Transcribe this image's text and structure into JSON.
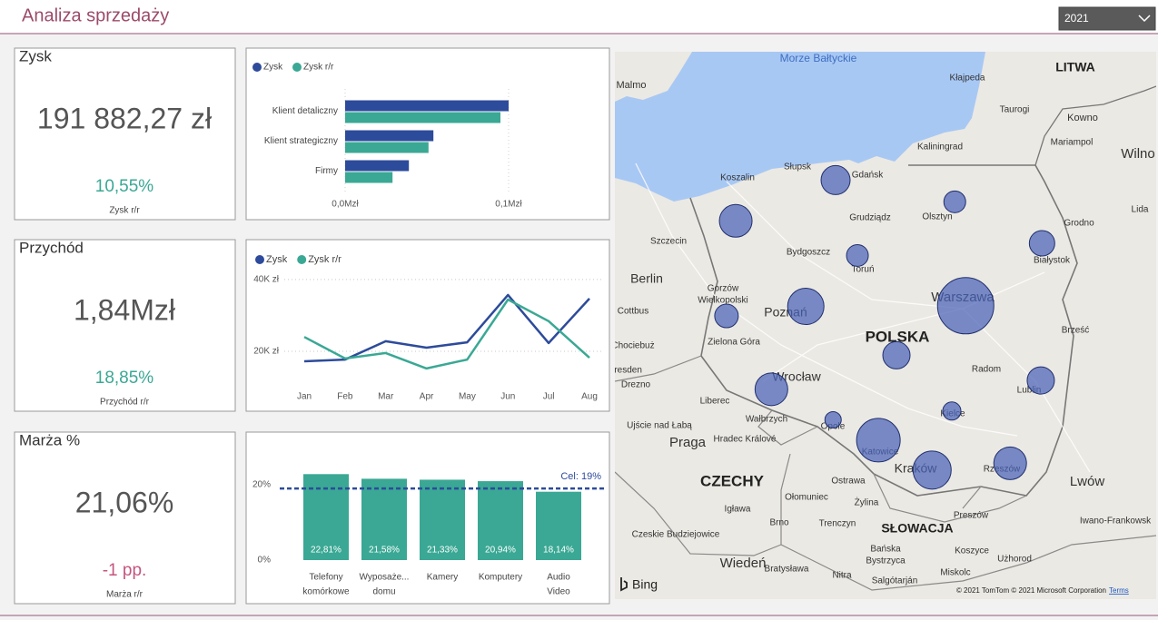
{
  "header": {
    "title": "Analiza sprzedaży",
    "filter": "2021"
  },
  "cards": [
    {
      "title": "Zysk",
      "value": "191 882,27 zł",
      "change": "10,55%",
      "change_label": "Zysk r/r",
      "change_color": "#3aa894"
    },
    {
      "title": "Przychód",
      "value": "1,84Mzł",
      "change": "18,85%",
      "change_label": "Przychód r/r",
      "change_color": "#3aa894"
    },
    {
      "title": "Marża %",
      "value": "21,06%",
      "change": "-1 pp.",
      "change_label": "Marża r/r",
      "change_color": "#c4557e"
    }
  ],
  "charts": [
    {
      "type": "hbar",
      "categories": [
        "Klient detaliczny",
        "Klient strategiczny",
        "Firmy"
      ],
      "series": [
        {
          "name": "Zysk",
          "color": "#2d4b9b",
          "values": [
            0.1,
            0.054,
            0.039
          ]
        },
        {
          "name": "Zysk r/r",
          "color": "#3aa894",
          "values": [
            0.095,
            0.051,
            0.029
          ]
        }
      ],
      "xlim": [
        0,
        0.1
      ],
      "xticks": [
        {
          "value": 0,
          "label": "0,0Mzł"
        },
        {
          "value": 0.1,
          "label": "0,1Mzł"
        }
      ],
      "grid": true
    },
    {
      "type": "line",
      "categories": [
        "Jan",
        "Feb",
        "Mar",
        "Apr",
        "May",
        "Jun",
        "Jul",
        "Aug"
      ],
      "series": [
        {
          "name": "Zysk",
          "color": "#2d4b9b",
          "values": [
            17200,
            17700,
            22800,
            21000,
            22500,
            35700,
            22300,
            34700
          ]
        },
        {
          "name": "Zysk r/r",
          "color": "#3aa894",
          "values": [
            24000,
            18000,
            19500,
            15200,
            17700,
            34400,
            28400,
            18200
          ]
        }
      ],
      "ylim": [
        10000,
        42000
      ],
      "yticks": [
        {
          "value": 20000,
          "label": "20K zł"
        },
        {
          "value": 40000,
          "label": "40K zł"
        }
      ],
      "grid": true
    },
    {
      "type": "bar",
      "categories": [
        [
          "Telefony",
          "komórkowe"
        ],
        [
          "Wyposaże...",
          "domu"
        ],
        [
          "Kamery"
        ],
        [
          "Komputery"
        ],
        [
          "Audio",
          "Video"
        ]
      ],
      "values": [
        22.81,
        21.58,
        21.33,
        20.94,
        18.14
      ],
      "value_labels": [
        "22,81%",
        "21,58%",
        "21,33%",
        "20,94%",
        "18,14%"
      ],
      "color": "#3aa894",
      "ylim": [
        0,
        33
      ],
      "yticks": [
        {
          "value": 0,
          "label": "0%"
        },
        {
          "value": 20,
          "label": "20%"
        }
      ],
      "target": {
        "value": 19,
        "label": "Cel: 19%",
        "color": "#2d4b9b"
      }
    }
  ],
  "map": {
    "lonlim": [
      12.64,
      25.54
    ],
    "latlim": [
      48.13,
      56.19
    ],
    "bubble_color": "#4a63b8",
    "bubbles": [
      {
        "lon": 17.9,
        "lat": 54.3,
        "value": 256
      },
      {
        "lon": 20.74,
        "lat": 53.98,
        "value": 144
      },
      {
        "lon": 15.52,
        "lat": 53.7,
        "value": 324
      },
      {
        "lon": 22.82,
        "lat": 53.37,
        "value": 196
      },
      {
        "lon": 18.42,
        "lat": 53.19,
        "value": 144
      },
      {
        "lon": 17.19,
        "lat": 52.44,
        "value": 400
      },
      {
        "lon": 21.0,
        "lat": 52.45,
        "value": 961
      },
      {
        "lon": 15.3,
        "lat": 52.3,
        "value": 169
      },
      {
        "lon": 19.35,
        "lat": 51.72,
        "value": 225
      },
      {
        "lon": 22.79,
        "lat": 51.35,
        "value": 225
      },
      {
        "lon": 16.37,
        "lat": 51.22,
        "value": 324
      },
      {
        "lon": 20.67,
        "lat": 50.9,
        "value": 100
      },
      {
        "lon": 17.84,
        "lat": 50.77,
        "value": 81
      },
      {
        "lon": 18.92,
        "lat": 50.47,
        "value": 576
      },
      {
        "lon": 20.2,
        "lat": 50.03,
        "value": 441
      },
      {
        "lon": 22.06,
        "lat": 50.13,
        "value": 324
      }
    ],
    "labels": [
      "Morze Bałtyckie",
      "LITWA",
      "POLSKA",
      "CZECHY",
      "SŁOWACJA",
      "Malmo",
      "Kłajpeda",
      "Taurogi",
      "Kowno",
      "Kaliningrad",
      "Mariampol",
      "Wilno",
      "Koszalin",
      "Słupsk",
      "Gdańsk",
      "Olsztyn",
      "Grudziądz",
      "Lida",
      "Grodno",
      "Szczecin",
      "Bydgoszcz",
      "Toruń",
      "Białystok",
      "Berlin",
      "Gorzów",
      "Wielkopolski",
      "Poznań",
      "Warszawa",
      "Cottbus",
      "Brześć",
      "Chociebuż",
      "Zielona Góra",
      "Radom",
      "Wrocław",
      "Dresden",
      "Drezno",
      "Lublin",
      "Liberec",
      "Wałbrzych",
      "Kielce",
      "Opole",
      "Ujście nad Łabą",
      "Hradec Králové",
      "Katowice",
      "Praga",
      "Kraków",
      "Rzeszów",
      "Lwów",
      "Ostrawa",
      "Igława",
      "Ołomuniec",
      "Żylina",
      "Preszów",
      "Iwano-Frankowsk",
      "Brno",
      "Trenczyn",
      "Czeskie Budziejowice",
      "Koszyce",
      "Bańska",
      "Bystrzyca",
      "Użhorod",
      "Wiedeń",
      "Bratysława",
      "Nitra",
      "Miskolc",
      "Salgótarján"
    ],
    "logo": "Bing",
    "attribution": "© 2021 TomTom © 2021 Microsoft Corporation",
    "terms": "Terms"
  }
}
